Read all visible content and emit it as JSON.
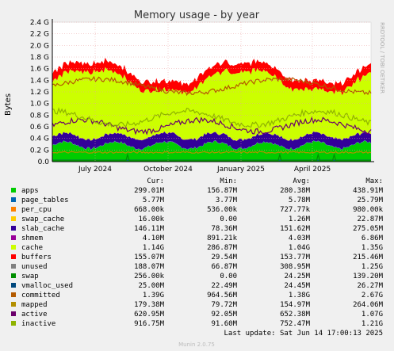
{
  "title": "Memory usage - by year",
  "side_label": "RRDTOOL / TOBI OETIKER",
  "footer": "Munin 2.0.75",
  "last_update": "Last update: Sat Jun 14 17:00:13 2025",
  "columns": [
    "Cur:",
    "Min:",
    "Avg:",
    "Max:"
  ],
  "colors": {
    "apps": "#00cc00",
    "page_tables": "#0066b3",
    "per_cpu": "#ff8000",
    "swap_cache": "#ffcc00",
    "slab_cache": "#330099",
    "shmem": "#990099",
    "cache": "#ccff00",
    "buffers": "#ff0000",
    "unused": "#808080",
    "swap": "#008f00",
    "vmalloc_used": "#00487d",
    "committed": "#b35a00",
    "mapped": "#b38f00",
    "active": "#6b006b",
    "inactive": "#8fb300"
  },
  "chart_data": {
    "type": "area",
    "title": "Memory usage - by year",
    "ylabel": "Bytes",
    "ylim": [
      0,
      2.4
    ],
    "y_unit": "G",
    "yticks": [
      "0.0",
      "0.2 G",
      "0.4 G",
      "0.6 G",
      "0.8 G",
      "1.0 G",
      "1.2 G",
      "1.4 G",
      "1.6 G",
      "1.8 G",
      "2.0 G",
      "2.2 G",
      "2.4 G"
    ],
    "xticks": [
      "July 2024",
      "October 2024",
      "January 2025",
      "April 2025"
    ],
    "xlim": [
      "2024-05-08",
      "2025-06-14"
    ],
    "xtick_dates": [
      "2024-07-01",
      "2024-10-01",
      "2025-01-01",
      "2025-04-01"
    ],
    "grid": true,
    "legend_placement": "bottom",
    "series": [
      {
        "name": "apps",
        "color": "#00cc00",
        "cur": "299.01M",
        "min": "156.87M",
        "avg": "280.38M",
        "max": "438.91M"
      },
      {
        "name": "page_tables",
        "color": "#0066b3",
        "cur": "5.77M",
        "min": "3.77M",
        "avg": "5.78M",
        "max": "25.79M"
      },
      {
        "name": "per_cpu",
        "color": "#ff8000",
        "cur": "668.00k",
        "min": "536.00k",
        "avg": "727.77k",
        "max": "980.00k"
      },
      {
        "name": "swap_cache",
        "color": "#ffcc00",
        "cur": "16.00k",
        "min": "0.00",
        "avg": "1.26M",
        "max": "22.87M"
      },
      {
        "name": "slab_cache",
        "color": "#330099",
        "cur": "146.11M",
        "min": "78.36M",
        "avg": "151.62M",
        "max": "275.05M"
      },
      {
        "name": "shmem",
        "color": "#990099",
        "cur": "4.10M",
        "min": "891.21k",
        "avg": "4.03M",
        "max": "6.86M"
      },
      {
        "name": "cache",
        "color": "#ccff00",
        "cur": "1.14G",
        "min": "286.87M",
        "avg": "1.04G",
        "max": "1.35G"
      },
      {
        "name": "buffers",
        "color": "#ff0000",
        "cur": "155.07M",
        "min": "29.54M",
        "avg": "153.77M",
        "max": "215.46M"
      },
      {
        "name": "unused",
        "color": "#808080",
        "cur": "188.07M",
        "min": "66.87M",
        "avg": "308.95M",
        "max": "1.25G"
      },
      {
        "name": "swap",
        "color": "#008f00",
        "cur": "256.00k",
        "min": "0.00",
        "avg": "24.25M",
        "max": "139.20M"
      },
      {
        "name": "vmalloc_used",
        "color": "#00487d",
        "cur": "25.00M",
        "min": "22.49M",
        "avg": "24.45M",
        "max": "26.27M"
      },
      {
        "name": "committed",
        "color": "#b35a00",
        "cur": "1.39G",
        "min": "964.56M",
        "avg": "1.38G",
        "max": "2.67G"
      },
      {
        "name": "mapped",
        "color": "#b38f00",
        "cur": "179.38M",
        "min": "79.72M",
        "avg": "154.97M",
        "max": "264.06M"
      },
      {
        "name": "active",
        "color": "#6b006b",
        "cur": "620.95M",
        "min": "92.05M",
        "avg": "652.38M",
        "max": "1.07G"
      },
      {
        "name": "inactive",
        "color": "#8fb300",
        "cur": "916.75M",
        "min": "91.60M",
        "avg": "752.47M",
        "max": "1.21G"
      }
    ]
  }
}
